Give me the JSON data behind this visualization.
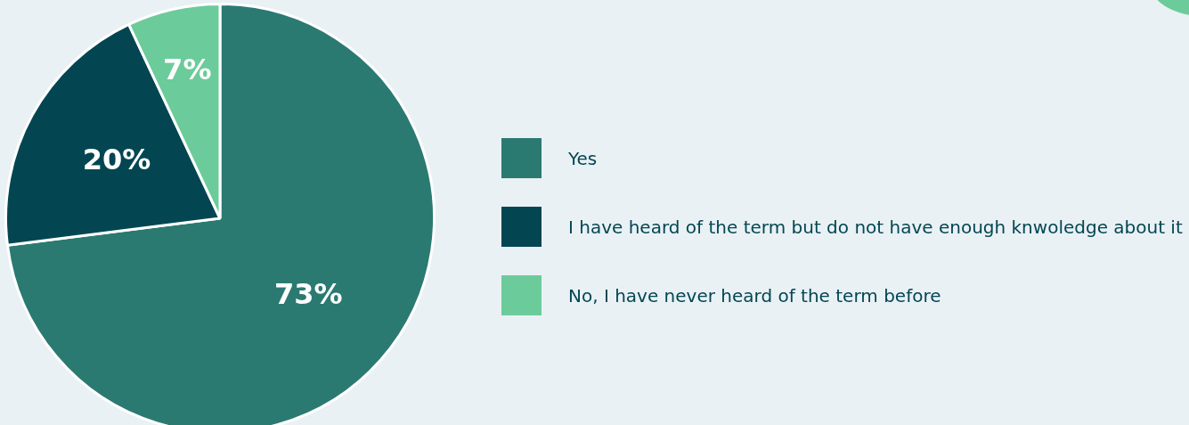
{
  "chart_data": {
    "type": "pie",
    "categories": [
      "Yes",
      "I have heard of the term but do not have enough knwoledge about it",
      "No, I have never heard of the term before"
    ],
    "values": [
      73,
      20,
      7
    ],
    "colors": [
      "#2a7a72",
      "#034652",
      "#6ccb9a"
    ],
    "value_labels": [
      "73%",
      "20%",
      "7%"
    ],
    "legend": "right"
  }
}
